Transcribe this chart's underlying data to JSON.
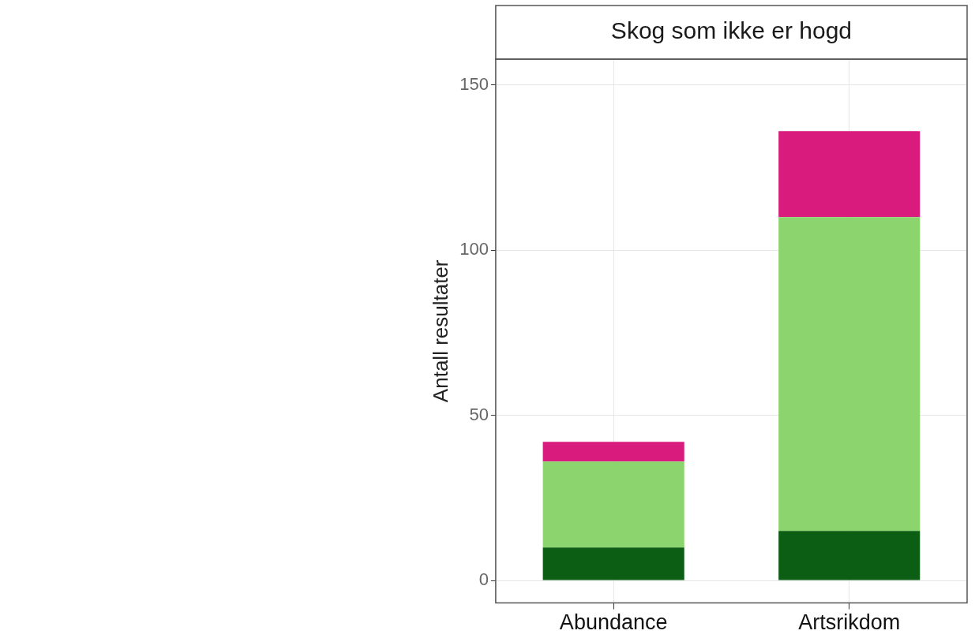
{
  "chart_data": {
    "type": "bar",
    "title": "Skog som ikke er hogd",
    "ylabel": "Antall resultater",
    "categories": [
      "Abundance",
      "Artsrikdom"
    ],
    "series": [
      {
        "color": "#0b5e13",
        "values": [
          10,
          15
        ]
      },
      {
        "color": "#8cd46e",
        "values": [
          26,
          95
        ]
      },
      {
        "color": "#d81b7c",
        "values": [
          6,
          26
        ]
      }
    ],
    "stacked": true,
    "ylim": [
      -6.8,
      157.8
    ],
    "yticks": [
      0,
      50,
      100,
      150
    ],
    "grid": true,
    "legend": false
  }
}
